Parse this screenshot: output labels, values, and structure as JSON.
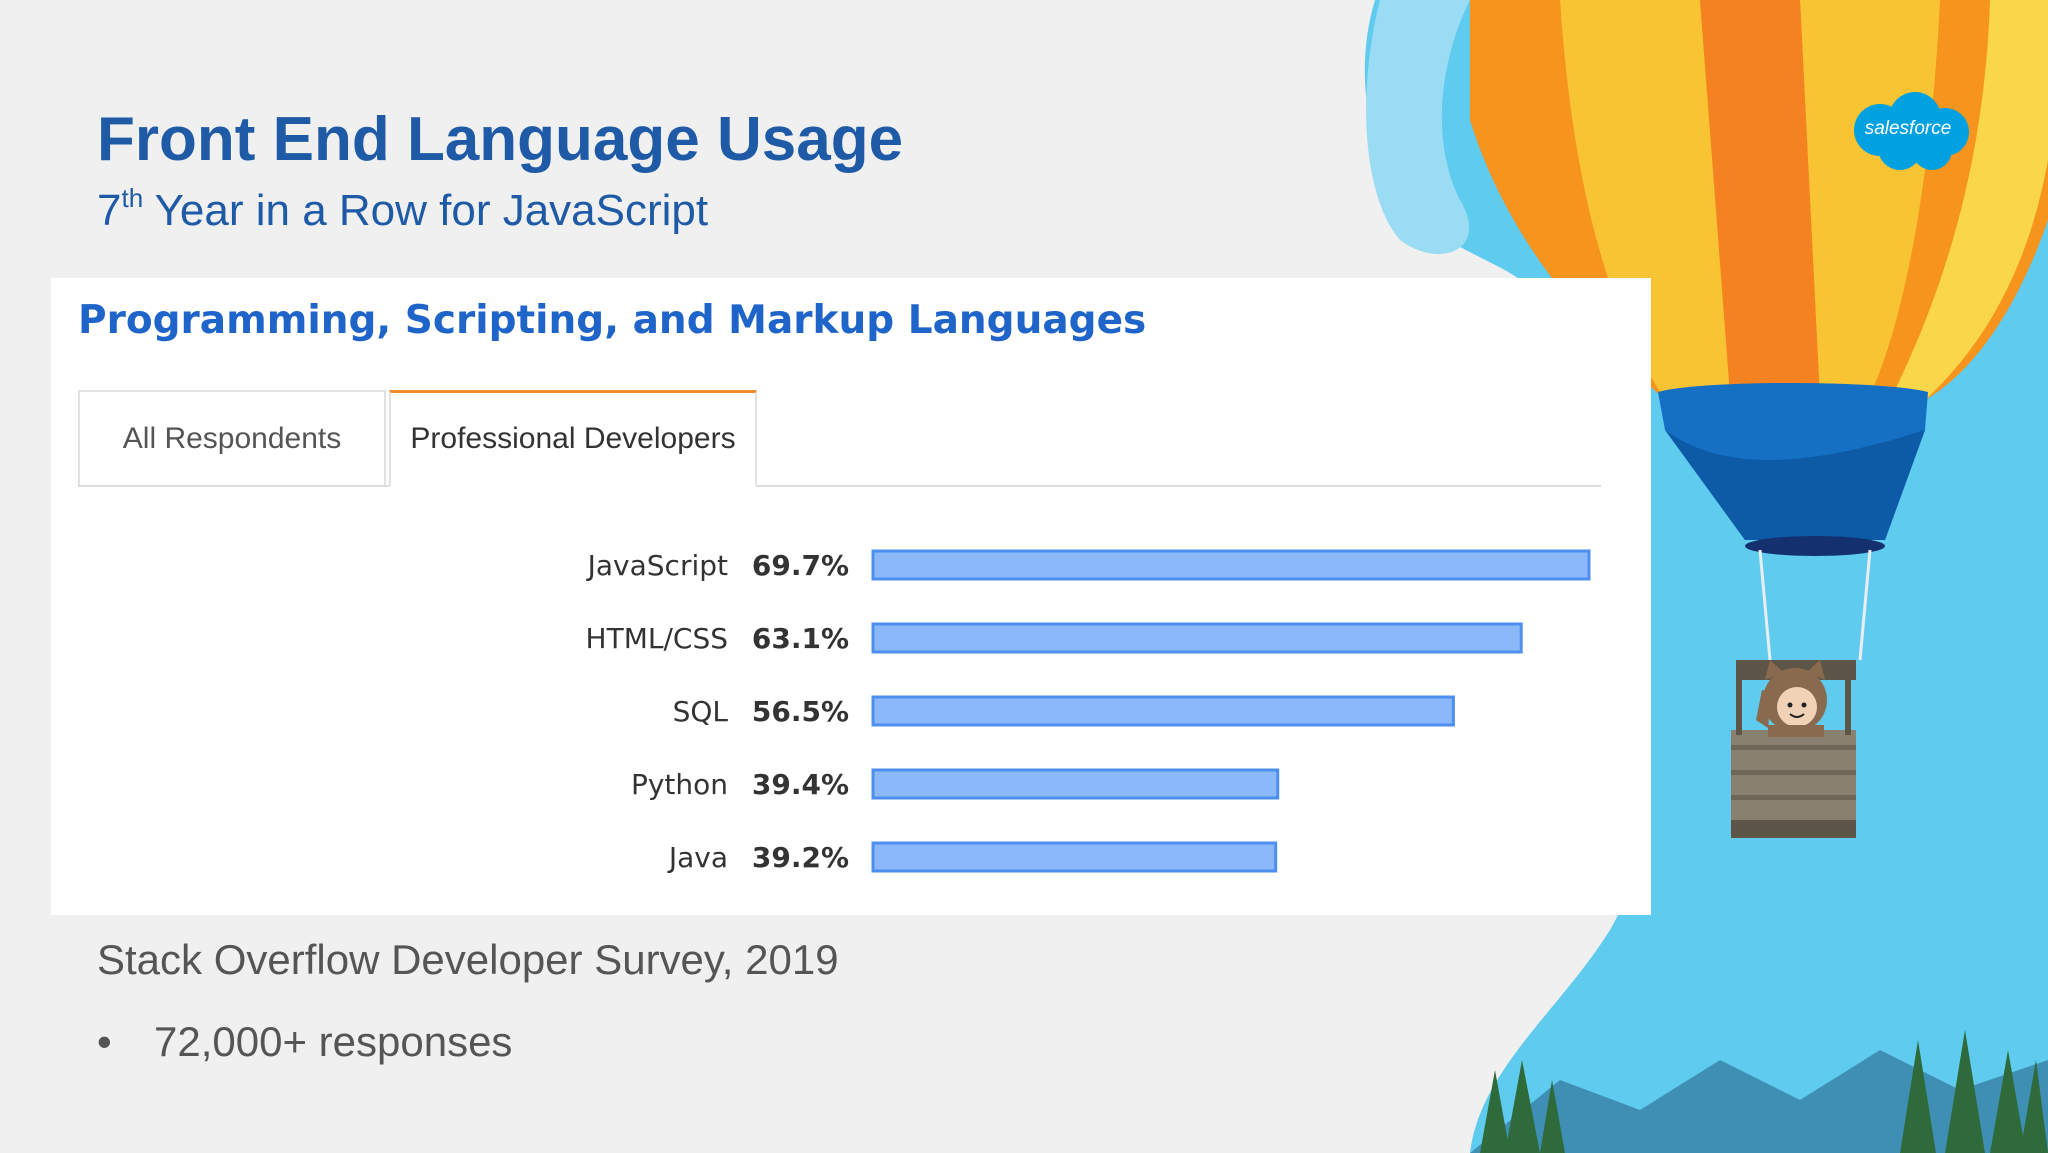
{
  "slide": {
    "title": "Front End Language Usage",
    "subtitle_prefix": "7",
    "subtitle_sup": "th",
    "subtitle_rest": " Year in a Row for JavaScript",
    "source": "Stack Overflow Developer Survey, 2019",
    "bullet_marker": "•",
    "bullet": "72,000+ responses",
    "logo": "salesforce"
  },
  "panel": {
    "title": "Programming, Scripting, and Markup Languages",
    "tabs": [
      {
        "label": "All Respondents",
        "active": false
      },
      {
        "label": "Professional Developers",
        "active": true
      }
    ]
  },
  "colors": {
    "title": "#1e5aa6",
    "panel_title": "#1f64c8",
    "bar_fill": "#8ab8f8",
    "bar_stroke": "#4d8ff0",
    "tab_accent": "#f08c2a",
    "sky": "#5fcbef"
  },
  "chart_data": {
    "type": "bar",
    "orientation": "horizontal",
    "categories": [
      "JavaScript",
      "HTML/CSS",
      "SQL",
      "Python",
      "Java"
    ],
    "values": [
      69.7,
      63.1,
      56.5,
      39.4,
      39.2
    ],
    "value_labels": [
      "69.7%",
      "63.1%",
      "56.5%",
      "39.4%",
      "39.2%"
    ],
    "unit": "%",
    "xlim": [
      0,
      69.7
    ],
    "grid": false,
    "legend": "none"
  }
}
